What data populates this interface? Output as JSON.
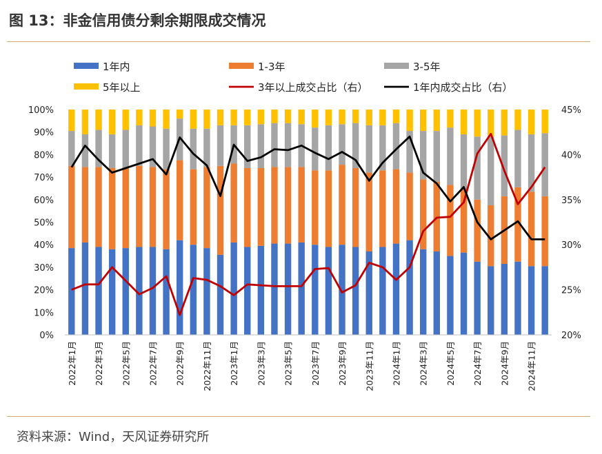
{
  "page": {
    "title": "图 13：非金信用债分剩余期限成交情况",
    "source": "资料来源：Wind，天风证券研究所"
  },
  "colors": {
    "s1": "#4472c4",
    "s2": "#ed7d31",
    "s3": "#a5a5a5",
    "s4": "#ffc000",
    "l1": "#c00000",
    "l2": "#000000",
    "rule": "#d4a36a"
  },
  "chart_data": {
    "type": "bar",
    "stacked": true,
    "categories": [
      "2022年1月",
      "2022年2月",
      "2022年3月",
      "2022年4月",
      "2022年5月",
      "2022年6月",
      "2022年7月",
      "2022年8月",
      "2022年9月",
      "2022年10月",
      "2022年11月",
      "2022年12月",
      "2023年1月",
      "2023年2月",
      "2023年3月",
      "2023年4月",
      "2023年5月",
      "2023年6月",
      "2023年7月",
      "2023年8月",
      "2023年9月",
      "2023年10月",
      "2023年11月",
      "2023年12月",
      "2024年1月",
      "2024年2月",
      "2024年3月",
      "2024年4月",
      "2024年5月",
      "2024年6月",
      "2024年7月",
      "2024年8月",
      "2024年9月",
      "2024年10月",
      "2024年11月",
      "2024年12月"
    ],
    "tick_labels": [
      "2022年1月",
      "2022年3月",
      "2022年5月",
      "2022年7月",
      "2022年9月",
      "2022年11月",
      "2023年1月",
      "2023年3月",
      "2023年5月",
      "2023年7月",
      "2023年9月",
      "2023年11月",
      "2024年1月",
      "2024年3月",
      "2024年5月",
      "2024年7月",
      "2024年9月",
      "2024年11月"
    ],
    "series": [
      {
        "name": "1年内",
        "kind": "bar",
        "values": [
          38.5,
          41,
          39,
          38,
          38.5,
          39,
          39,
          38,
          42,
          40,
          38.5,
          35.5,
          41,
          39,
          39.5,
          40.5,
          40.5,
          41,
          40,
          39,
          40,
          39,
          37,
          39,
          40.5,
          42,
          38,
          37,
          35,
          36.5,
          32.5,
          30.5,
          31.5,
          32.5,
          30.5,
          30.5
        ]
      },
      {
        "name": "1-3年",
        "kind": "bar",
        "values": [
          36.5,
          33.5,
          35.5,
          36,
          35.5,
          36,
          35.5,
          35.5,
          35.5,
          33.5,
          36,
          39.5,
          35,
          35,
          34.5,
          34,
          34,
          33.5,
          33,
          34,
          35.5,
          35,
          35,
          34,
          33,
          30,
          31,
          31,
          31.5,
          28.5,
          27.5,
          27,
          30,
          33,
          33,
          31
        ]
      },
      {
        "name": "3-5年",
        "kind": "bar",
        "values": [
          15.5,
          14.5,
          16.5,
          15,
          17,
          18,
          18,
          18,
          18.5,
          18,
          17,
          18,
          17,
          19,
          19.5,
          19.5,
          19.5,
          19,
          19,
          20,
          18,
          20,
          21,
          20,
          20.5,
          18.5,
          21.5,
          22.5,
          25.5,
          24,
          28,
          30.5,
          27,
          25.5,
          25.5,
          28
        ]
      },
      {
        "name": "5年以上",
        "kind": "bar",
        "values": [
          9.5,
          11,
          9,
          11,
          9,
          7,
          7.5,
          8.5,
          4,
          8.5,
          8.5,
          7,
          7,
          7,
          6.5,
          6,
          6,
          6.5,
          8,
          7,
          6.5,
          6,
          7,
          7,
          6,
          9.5,
          9.5,
          9.5,
          8,
          11,
          12,
          12,
          11.5,
          9,
          11,
          10.5
        ]
      },
      {
        "name": "3年以上成交占比（右）",
        "kind": "line",
        "values": [
          25.0,
          25.6,
          25.6,
          27.5,
          26.0,
          24.5,
          25.2,
          26.5,
          22.2,
          26.3,
          26.1,
          25.4,
          24.4,
          25.6,
          25.5,
          25.4,
          25.4,
          25.4,
          27.3,
          27.4,
          24.7,
          25.5,
          28.0,
          27.5,
          26.1,
          27.5,
          31.5,
          33.0,
          33.1,
          34.7,
          40.1,
          42.3,
          38.2,
          34.5,
          36.4,
          38.6
        ]
      },
      {
        "name": "1年内成交占比（右）",
        "kind": "line",
        "values": [
          38.6,
          41.0,
          39.4,
          38.0,
          38.5,
          39.0,
          39.5,
          37.8,
          41.9,
          40.1,
          38.8,
          35.4,
          41.1,
          39.3,
          39.7,
          40.6,
          40.5,
          41.0,
          40.2,
          39.5,
          40.3,
          39.4,
          37.1,
          39.1,
          40.6,
          42.0,
          38.0,
          36.8,
          34.8,
          36.4,
          32.5,
          30.6,
          31.6,
          32.6,
          30.6,
          30.6
        ]
      }
    ],
    "y_left": {
      "min": 0,
      "max": 100,
      "ticks": [
        "0%",
        "10%",
        "20%",
        "30%",
        "40%",
        "50%",
        "60%",
        "70%",
        "80%",
        "90%",
        "100%"
      ]
    },
    "y_right": {
      "min": 20,
      "max": 45,
      "ticks": [
        "20%",
        "25%",
        "30%",
        "35%",
        "40%",
        "45%"
      ]
    },
    "legend_position": "top",
    "grid": false,
    "legend": [
      "1年内",
      "1-3年",
      "3-5年",
      "5年以上",
      "3年以上成交占比（右）",
      "1年内成交占比（右）"
    ]
  }
}
